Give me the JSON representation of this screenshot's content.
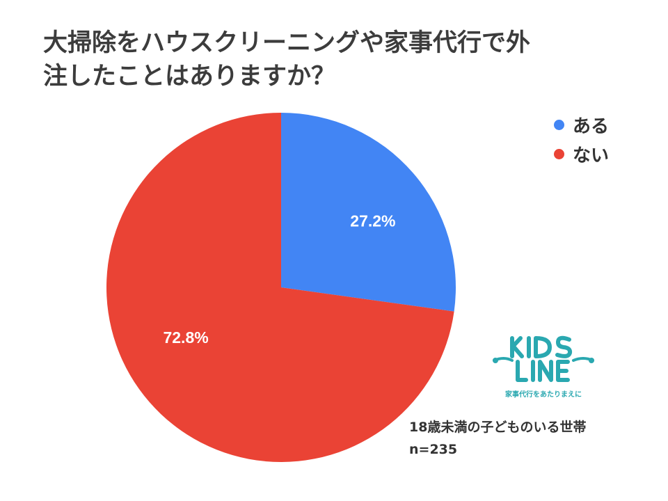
{
  "chart_data": {
    "type": "pie",
    "title": [
      "大掃除をハウスクリーニングや家事代行で外",
      "注したことはありますか？"
    ],
    "slices": [
      {
        "label": "ある",
        "value": 27.2,
        "display": "27.2%",
        "color": "#4285f4"
      },
      {
        "label": "ない",
        "value": 72.8,
        "display": "72.8%",
        "color": "#ea4335"
      }
    ],
    "legend_position": "top-right",
    "note": [
      "18歳未満の子どものいる世帯",
      "n=235"
    ]
  },
  "logo": {
    "brand": "KIDS LINE",
    "tagline": "家事代行をあたりまえに",
    "color": "#2aa8b0"
  }
}
